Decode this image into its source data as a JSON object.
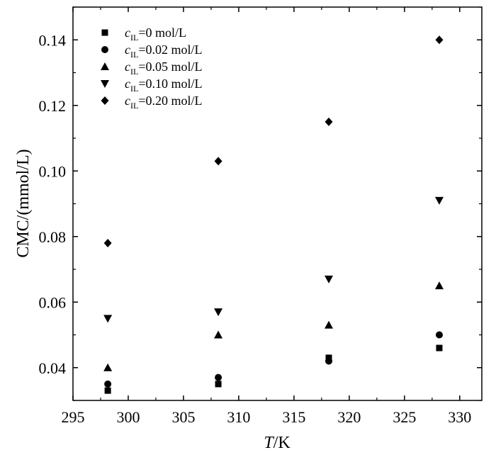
{
  "chart_data": {
    "type": "scatter",
    "title": "",
    "xlabel": {
      "italic": "T",
      "rest": "/K"
    },
    "ylabel": "CMC/(mmol/L)",
    "xlim": [
      295,
      332
    ],
    "ylim": [
      0.03,
      0.15
    ],
    "xticks": [
      295,
      300,
      305,
      310,
      315,
      320,
      325,
      330
    ],
    "xtick_labels": [
      "295",
      "300",
      "305",
      "310",
      "315",
      "320",
      "325",
      "330"
    ],
    "yticks": [
      0.04,
      0.06,
      0.08,
      0.1,
      0.12,
      0.14
    ],
    "ytick_labels": [
      "0.04",
      "0.06",
      "0.08",
      "0.10",
      "0.12",
      "0.14"
    ],
    "x": [
      298.15,
      308.15,
      318.15,
      328.15
    ],
    "legend_position": "top-left",
    "series": [
      {
        "name": "c_IL=0 mol/L",
        "label_c": "c",
        "label_sub": "IL",
        "label_rest": "=0 mol/L",
        "marker": "square",
        "values": [
          0.033,
          0.035,
          0.043,
          0.046
        ]
      },
      {
        "name": "c_IL=0.02 mol/L",
        "label_c": "c",
        "label_sub": "IL",
        "label_rest": "=0.02 mol/L",
        "marker": "circle",
        "values": [
          0.035,
          0.037,
          0.042,
          0.05
        ]
      },
      {
        "name": "c_IL=0.05 mol/L",
        "label_c": "c",
        "label_sub": "IL",
        "label_rest": "=0.05 mol/L",
        "marker": "triangle-up",
        "values": [
          0.04,
          0.05,
          0.053,
          0.065
        ]
      },
      {
        "name": "c_IL=0.10 mol/L",
        "label_c": "c",
        "label_sub": "IL",
        "label_rest": "=0.10 mol/L",
        "marker": "triangle-down",
        "values": [
          0.055,
          0.057,
          0.067,
          0.091
        ]
      },
      {
        "name": "c_IL=0.20 mol/L",
        "label_c": "c",
        "label_sub": "IL",
        "label_rest": "=0.20 mol/L",
        "marker": "diamond",
        "values": [
          0.078,
          0.103,
          0.115,
          0.14
        ]
      }
    ]
  }
}
